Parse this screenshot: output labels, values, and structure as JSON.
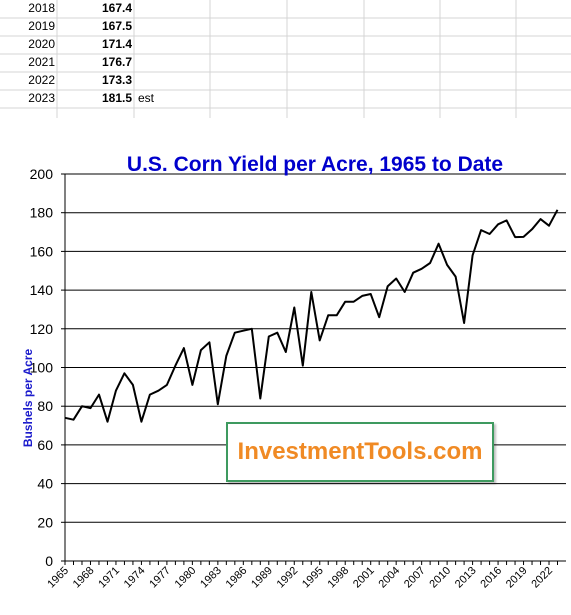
{
  "sheet_rows": [
    {
      "year": "2018",
      "value": "167.4",
      "note": ""
    },
    {
      "year": "2019",
      "value": "167.5",
      "note": ""
    },
    {
      "year": "2020",
      "value": "171.4",
      "note": ""
    },
    {
      "year": "2021",
      "value": "176.7",
      "note": ""
    },
    {
      "year": "2022",
      "value": "173.3",
      "note": ""
    },
    {
      "year": "2023",
      "value": "181.5",
      "note": "est"
    }
  ],
  "watermark": "InvestmentTools.com",
  "colors": {
    "line": "#000000",
    "title": "#0000cc",
    "grid": "#000000",
    "watermark_text": "#f08a24",
    "watermark_border": "#3e9a5f"
  },
  "chart_data": {
    "type": "line",
    "title": "U.S. Corn Yield per Acre, 1965 to Date",
    "xlabel": "",
    "ylabel": "Bushels per Acre",
    "ylim": [
      0,
      200
    ],
    "xlim": [
      1965,
      2024
    ],
    "yticks": [
      0,
      20,
      40,
      60,
      80,
      100,
      120,
      140,
      160,
      180,
      200
    ],
    "xticks": [
      "1965",
      "1968",
      "1971",
      "1974",
      "1977",
      "1980",
      "1983",
      "1986",
      "1989",
      "1992",
      "1995",
      "1998",
      "2001",
      "2004",
      "2007",
      "2010",
      "2013",
      "2016",
      "2019",
      "2022"
    ],
    "grid": "horizontal",
    "x": [
      1965,
      1966,
      1967,
      1968,
      1969,
      1970,
      1971,
      1972,
      1973,
      1974,
      1975,
      1976,
      1977,
      1978,
      1979,
      1980,
      1981,
      1982,
      1983,
      1984,
      1985,
      1986,
      1987,
      1988,
      1989,
      1990,
      1991,
      1992,
      1993,
      1994,
      1995,
      1996,
      1997,
      1998,
      1999,
      2000,
      2001,
      2002,
      2003,
      2004,
      2005,
      2006,
      2007,
      2008,
      2009,
      2010,
      2011,
      2012,
      2013,
      2014,
      2015,
      2016,
      2017,
      2018,
      2019,
      2020,
      2021,
      2022,
      2023
    ],
    "series": [
      {
        "name": "",
        "values": [
          74,
          73,
          80,
          79,
          86,
          72,
          88,
          97,
          91,
          72,
          86,
          88,
          91,
          101,
          110,
          91,
          109,
          113,
          81,
          106,
          118,
          119,
          120,
          84,
          116,
          118,
          108,
          131,
          101,
          139,
          114,
          127,
          127,
          134,
          134,
          137,
          138,
          126,
          142,
          146,
          139,
          149,
          151,
          154,
          164,
          153,
          147,
          123,
          158,
          171,
          169,
          174,
          176,
          167.4,
          167.5,
          171.4,
          176.7,
          173.3,
          181.5
        ]
      }
    ]
  }
}
